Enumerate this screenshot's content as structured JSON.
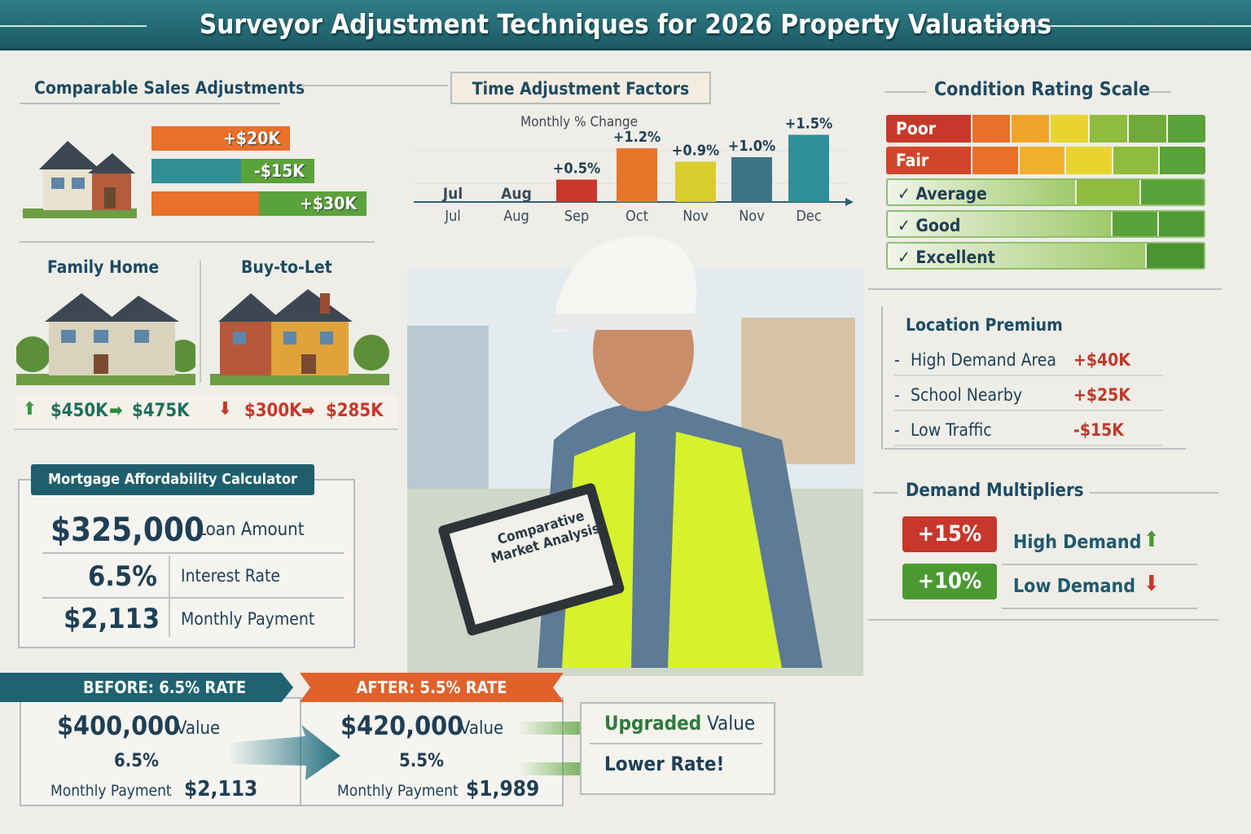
{
  "title": "Surveyor Adjustment Techniques for 2026 Property Valuations",
  "comparable": {
    "title": "Comparable Sales Adjustments",
    "bars": [
      {
        "label": "+$20K",
        "color": "#e8702a"
      },
      {
        "label": "-$15K",
        "color": "#2f8f95"
      },
      {
        "label": "+$30K",
        "color": "#5aa33a"
      }
    ]
  },
  "time": {
    "title": "Time Adjustment Factors",
    "subtitle": "Monthly % Change"
  },
  "chart_data": {
    "type": "bar",
    "title": "Time Adjustment Factors",
    "ylabel": "Monthly % Change",
    "categories": [
      "Jul",
      "Aug",
      "Sep",
      "Oct",
      "Nov",
      "Nov",
      "Dec"
    ],
    "values": [
      null,
      null,
      0.5,
      1.2,
      0.9,
      1.0,
      1.5
    ],
    "labels": [
      "",
      "",
      "+0.5%",
      "+1.2%",
      "+0.9%",
      "+1.0%",
      "+1.5%"
    ],
    "colors": [
      "",
      "",
      "#c9372a",
      "#e8762a",
      "#d9cd2e",
      "#3e7385",
      "#2f8f99"
    ],
    "grid": true
  },
  "condition": {
    "title": "Condition Rating Scale",
    "rows": [
      {
        "label": "Poor",
        "check": false
      },
      {
        "label": "Fair",
        "check": false
      },
      {
        "label": "Average",
        "check": true
      },
      {
        "label": "Good",
        "check": true
      },
      {
        "label": "Excellent",
        "check": true
      }
    ]
  },
  "homes": {
    "family": "Family Home",
    "btl": "Buy-to-Let",
    "family_from": "$450K",
    "family_to": "$475K",
    "btl_from": "$300K",
    "btl_to": "$285K"
  },
  "location": {
    "title": "Location Premium",
    "items": [
      {
        "label": "High Demand Area",
        "value": "+$40K"
      },
      {
        "label": "School Nearby",
        "value": "+$25K"
      },
      {
        "label": "Low Traffic",
        "value": "-$15K"
      }
    ]
  },
  "demand": {
    "title": "Demand Multipliers",
    "items": [
      {
        "value": "+15%",
        "label": "High Demand",
        "color": "#c8372b"
      },
      {
        "value": "+10%",
        "label": "Low Demand",
        "color": "#4b9a31"
      }
    ]
  },
  "mortgage": {
    "title": "Mortgage Affordability Calculator",
    "loan": "$325,000",
    "loan_label": "Loan Amount",
    "rate": "6.5%",
    "rate_label": "Interest Rate",
    "payment": "$2,113",
    "payment_label": "Monthly Payment"
  },
  "clipboard": "Comparative Market Analysis",
  "before": {
    "title": "BEFORE: 6.5% RATE",
    "value": "$400,000",
    "value_label": "Value",
    "rate": "6.5%",
    "payment_label": "Monthly Payment",
    "payment": "$2,113"
  },
  "after": {
    "title": "AFTER: 5.5% RATE",
    "value": "$420,000",
    "value_label": "Value",
    "rate": "5.5%",
    "payment_label": "Monthly Payment",
    "payment": "$1,989"
  },
  "notes": {
    "upgraded_bold": "Upgraded",
    "upgraded_rest": "Value",
    "lower": "Lower Rate!"
  }
}
